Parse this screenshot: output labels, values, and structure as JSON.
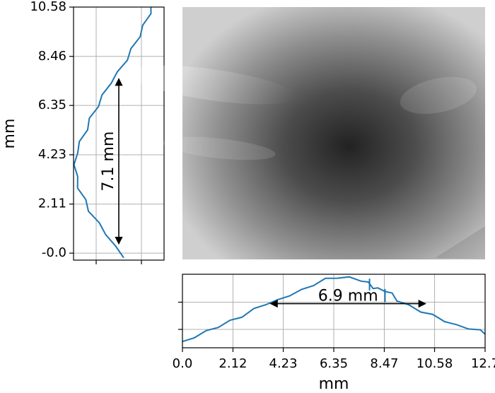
{
  "chart_data": [
    {
      "panel": "left-profile",
      "type": "line",
      "ylabel": "mm",
      "xlabel": "",
      "yticks": [
        "-0.0",
        "2.11",
        "4.23",
        "6.35",
        "8.46",
        "10.58"
      ],
      "ytick_values": [
        0.0,
        2.11,
        4.23,
        6.35,
        8.46,
        10.58
      ],
      "ylim": [
        -0.3,
        10.58
      ],
      "xlim": [
        0,
        1
      ],
      "xtick_values": [
        0.25,
        0.75
      ],
      "grid": true,
      "series_color": "#1f77b4",
      "profile": {
        "y": [
          -0.2,
          0.3,
          0.8,
          1.3,
          1.8,
          2.3,
          2.8,
          3.3,
          3.8,
          4.3,
          4.8,
          5.3,
          5.8,
          6.3,
          6.8,
          7.3,
          7.8,
          8.3,
          8.8,
          9.3,
          9.8,
          10.3,
          10.58
        ],
        "x": [
          0.57,
          0.45,
          0.37,
          0.27,
          0.18,
          0.12,
          0.06,
          0.03,
          0.02,
          0.03,
          0.08,
          0.14,
          0.19,
          0.26,
          0.33,
          0.4,
          0.5,
          0.58,
          0.65,
          0.72,
          0.78,
          0.84,
          0.87
        ]
      },
      "annotation": {
        "text": "7.1 mm",
        "from": 0.4,
        "to": 7.5,
        "at": 0.5
      }
    },
    {
      "panel": "bottom-profile",
      "type": "line",
      "xlabel": "mm",
      "ylabel": "",
      "xticks": [
        "0.0",
        "2.12",
        "4.23",
        "6.35",
        "8.47",
        "10.58",
        "12.7"
      ],
      "xtick_values": [
        0.0,
        2.12,
        4.23,
        6.35,
        8.47,
        10.58,
        12.7
      ],
      "xlim": [
        0.0,
        12.7
      ],
      "ylim": [
        0,
        1
      ],
      "ytick_values": [
        0.25,
        0.62
      ],
      "grid": true,
      "series_color": "#1f77b4",
      "profile": {
        "x": [
          0.0,
          0.5,
          1.0,
          1.5,
          2.0,
          2.5,
          3.0,
          3.5,
          4.0,
          4.5,
          5.0,
          5.5,
          6.0,
          6.5,
          7.0,
          7.5,
          7.8,
          8.0,
          8.2,
          8.5,
          8.8,
          9.0,
          9.5,
          10.0,
          10.5,
          11.0,
          11.5,
          12.0,
          12.5,
          12.7
        ],
        "y": [
          0.07,
          0.15,
          0.22,
          0.29,
          0.36,
          0.43,
          0.52,
          0.6,
          0.64,
          0.72,
          0.78,
          0.86,
          0.93,
          0.96,
          0.95,
          0.92,
          0.88,
          0.82,
          0.8,
          0.78,
          0.73,
          0.65,
          0.57,
          0.5,
          0.44,
          0.37,
          0.3,
          0.27,
          0.23,
          0.2
        ]
      },
      "spikes": [
        {
          "x": 7.85,
          "top": 0.94,
          "base": 0.78
        },
        {
          "x": 8.5,
          "top": 0.8,
          "base": 0.62
        }
      ],
      "annotation": {
        "text": "6.9 mm",
        "from": 3.7,
        "to": 10.2,
        "at": 0.6
      }
    }
  ],
  "image_panel": {
    "type": "grayscale-intensity-map",
    "colors": {
      "light": "#d6d6d6",
      "dark": "#232323"
    }
  }
}
